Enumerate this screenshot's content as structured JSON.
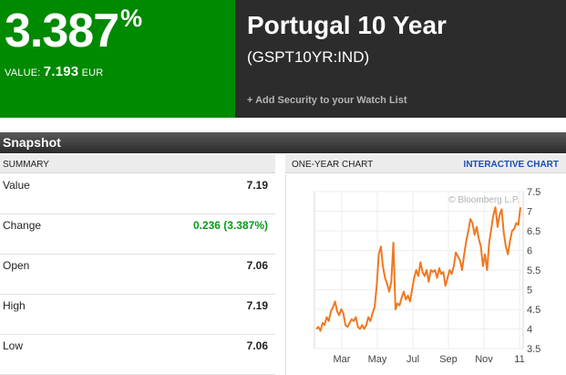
{
  "quote": {
    "percent": "3.387",
    "percent_sign": "%",
    "value_label": "VALUE:",
    "value": "7.193",
    "currency": "EUR"
  },
  "security": {
    "name": "Portugal 10 Year",
    "ticker": "(GSPT10YR:IND)",
    "watch_list_link": "+ Add Security to your Watch List"
  },
  "snapshot": {
    "title": "Snapshot",
    "summary_header": "SUMMARY",
    "rows": [
      {
        "label": "Value",
        "value": "7.19"
      },
      {
        "label": "Change",
        "value": "0.236 (3.387%)"
      },
      {
        "label": "Open",
        "value": "7.06"
      },
      {
        "label": "High",
        "value": "7.19"
      },
      {
        "label": "Low",
        "value": "7.06"
      }
    ]
  },
  "chart_panel": {
    "header": "ONE-YEAR CHART",
    "interactive_link": "INTERACTIVE CHART",
    "watermark": "© Bloomberg L.P."
  },
  "colors": {
    "quote_green": "#008a00",
    "title_dark": "#2c2c2c",
    "change_green": "#0a9a1a",
    "line_orange": "#f07820",
    "link_blue": "#1a4fb5"
  },
  "chart_data": {
    "type": "line",
    "title": "",
    "xlabel": "",
    "ylabel": "",
    "ylim": [
      3.5,
      7.5
    ],
    "y_ticks": [
      "7.5",
      "7",
      "6.5",
      "6",
      "5.5",
      "5",
      "4.5",
      "4",
      "3.5"
    ],
    "x_ticks": [
      "Mar",
      "May",
      "Jul",
      "Sep",
      "Nov",
      "11"
    ],
    "grid": true,
    "series": [
      {
        "values": [
          4.0,
          4.05,
          3.95,
          4.15,
          4.1,
          4.3,
          4.2,
          4.45,
          4.55,
          4.7,
          4.45,
          4.35,
          4.5,
          4.4,
          4.1,
          4.05,
          4.15,
          4.25,
          4.2,
          4.3,
          4.05,
          4.0,
          4.1,
          4.0,
          4.1,
          4.3,
          4.2,
          4.4,
          4.55,
          5.1,
          5.9,
          6.1,
          5.6,
          5.3,
          5.15,
          4.95,
          5.2,
          6.2,
          4.5,
          4.65,
          4.6,
          4.8,
          4.95,
          4.75,
          4.85,
          4.7,
          5.0,
          5.3,
          5.5,
          5.35,
          5.7,
          5.45,
          5.35,
          5.5,
          5.2,
          5.5,
          5.45,
          5.5,
          5.3,
          5.55,
          5.4,
          5.45,
          5.1,
          5.3,
          5.5,
          5.4,
          5.6,
          5.95,
          5.85,
          5.75,
          5.5,
          5.9,
          6.25,
          6.5,
          6.8,
          6.7,
          6.4,
          6.6,
          6.3,
          6.1,
          5.6,
          5.9,
          5.5,
          6.2,
          6.55,
          6.9,
          7.1,
          6.6,
          6.9,
          7.05,
          6.45,
          6.1,
          5.9,
          6.25,
          6.5,
          6.55,
          6.7,
          6.65,
          7.1
        ]
      }
    ]
  }
}
